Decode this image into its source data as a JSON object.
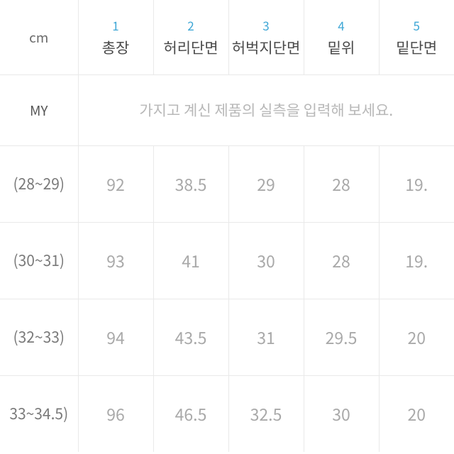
{
  "header": {
    "unit": "cm",
    "columns": [
      {
        "num": "1",
        "name": "총장"
      },
      {
        "num": "2",
        "name": "허리단면"
      },
      {
        "num": "3",
        "name": "허벅지단면"
      },
      {
        "num": "4",
        "name": "밑위"
      },
      {
        "num": "5",
        "name": "밑단면"
      }
    ]
  },
  "my": {
    "label": "MY",
    "placeholder": "가지고 계신 제품의 실측을 입력해 보세요."
  },
  "rows": [
    {
      "size": "(28~29)",
      "v": [
        "92",
        "38.5",
        "29",
        "28",
        "19."
      ]
    },
    {
      "size": "(30~31)",
      "v": [
        "93",
        "41",
        "30",
        "28",
        "19."
      ]
    },
    {
      "size": "(32~33)",
      "v": [
        "94",
        "43.5",
        "31",
        "29.5",
        "20"
      ]
    },
    {
      "size": "33~34.5)",
      "v": [
        "96",
        "46.5",
        "32.5",
        "30",
        "20"
      ]
    }
  ],
  "style": {
    "border_color": "#e9e9e9",
    "header_num_color": "#3fa7d6",
    "header_name_color": "#4a4a4a",
    "unit_color": "#6b6b6b",
    "placeholder_color": "#b8b8b8",
    "value_color": "#a9a9a9",
    "background": "#ffffff"
  }
}
